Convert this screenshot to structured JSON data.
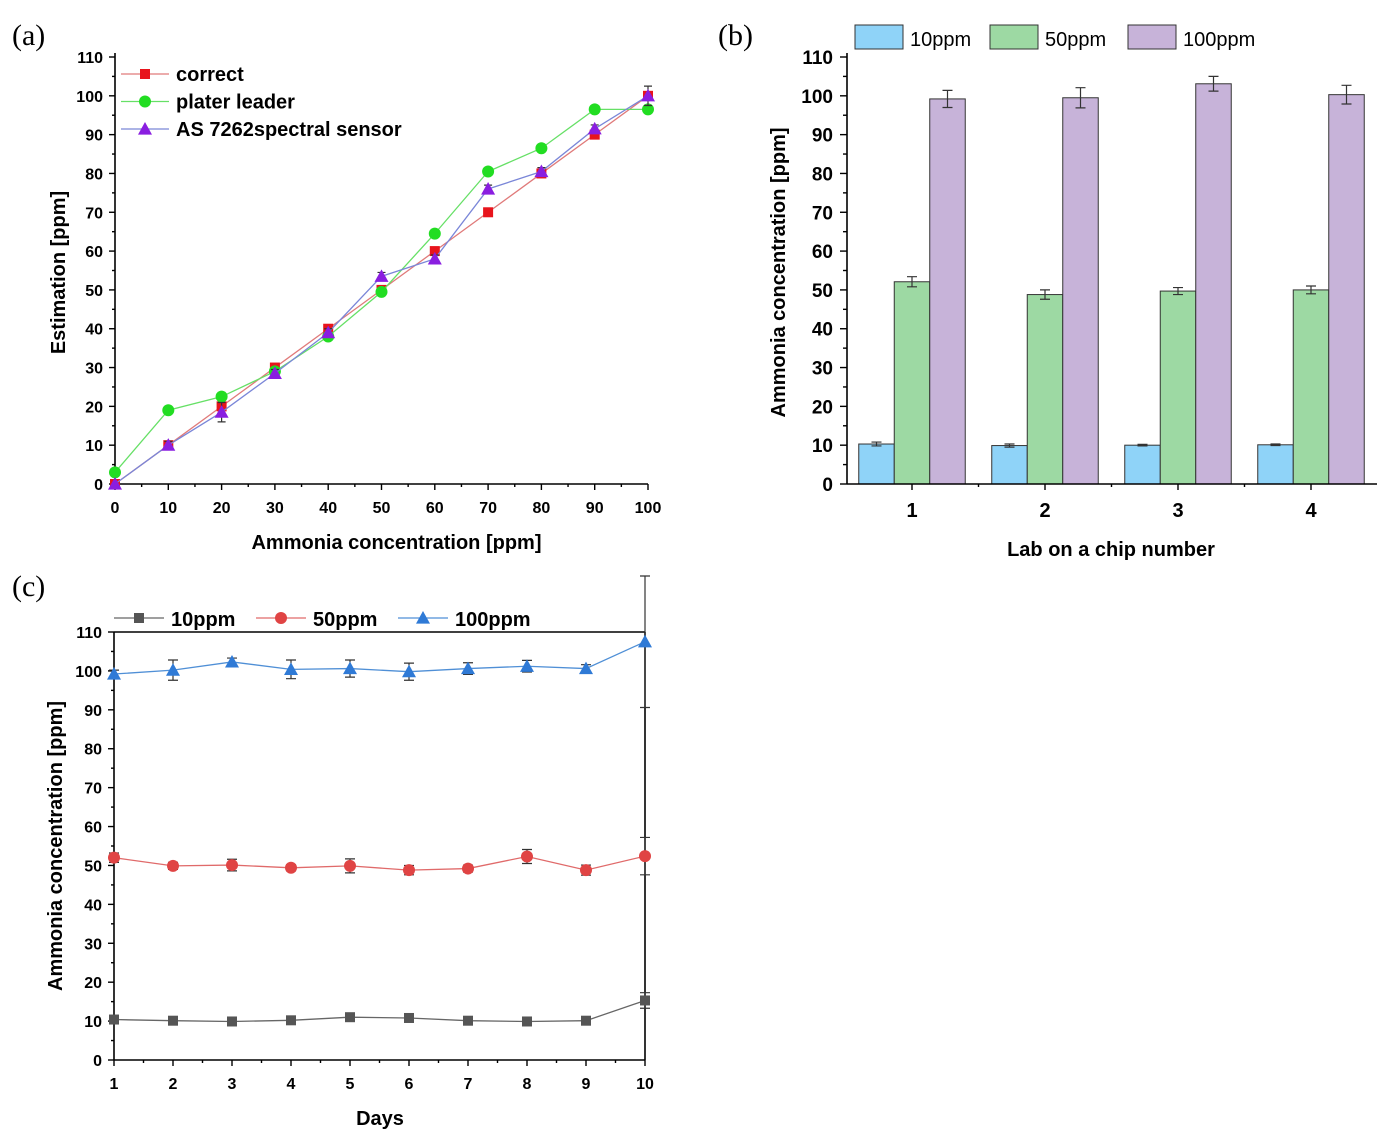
{
  "panels": {
    "a": {
      "label": "(a)"
    },
    "b": {
      "label": "(b)"
    },
    "c": {
      "label": "(c)"
    }
  },
  "chart_data": [
    {
      "id": "a",
      "type": "line",
      "title": "",
      "xlabel": "Ammonia concentration [ppm]",
      "ylabel": "Estimation [ppm]",
      "x": [
        0,
        10,
        20,
        30,
        40,
        50,
        60,
        70,
        80,
        90,
        100
      ],
      "xlim": [
        0,
        100
      ],
      "ylim": [
        0,
        110
      ],
      "xticks": [
        0,
        10,
        20,
        30,
        40,
        50,
        60,
        70,
        80,
        90,
        100
      ],
      "yticks": [
        0,
        10,
        20,
        30,
        40,
        50,
        60,
        70,
        80,
        90,
        100,
        110
      ],
      "legend_position": "top-left",
      "series": [
        {
          "name": "correct",
          "color": "#e8141c",
          "line_color": "#e07a7a",
          "marker": "square",
          "values": [
            0,
            10,
            20,
            30,
            40,
            50,
            60,
            70,
            80,
            90,
            100
          ]
        },
        {
          "name": "plater leader",
          "color": "#22dd22",
          "line_color": "#66e066",
          "marker": "circle",
          "values": [
            3,
            19,
            22.5,
            29,
            38,
            49.5,
            64.5,
            80.5,
            86.5,
            96.5,
            96.5
          ]
        },
        {
          "name": "AS 7262spectral sensor",
          "color": "#8a1ee0",
          "line_color": "#7a86d8",
          "marker": "triangle",
          "values": [
            0,
            10,
            18.5,
            28.5,
            39,
            53.5,
            58,
            76,
            80.5,
            91.5,
            100
          ],
          "errors": [
            0,
            1,
            2.5,
            1,
            1,
            1,
            1,
            1,
            1,
            1,
            2.5
          ]
        }
      ]
    },
    {
      "id": "b",
      "type": "bar",
      "title": "",
      "xlabel": "Lab on a chip number",
      "ylabel": "Ammonia concentration [ppm]",
      "categories": [
        "1",
        "2",
        "3",
        "4"
      ],
      "ylim": [
        0,
        110
      ],
      "yticks": [
        0,
        10,
        20,
        30,
        40,
        50,
        60,
        70,
        80,
        90,
        100,
        110
      ],
      "legend_position": "top",
      "series": [
        {
          "name": "10ppm",
          "color": "#8fd3f8",
          "values": [
            10.3,
            9.9,
            10.0,
            10.1
          ],
          "errors": [
            0.5,
            0.4,
            0.2,
            0.2
          ]
        },
        {
          "name": "50ppm",
          "color": "#9dd9a3",
          "values": [
            52.1,
            48.8,
            49.7,
            50.0
          ],
          "errors": [
            1.3,
            1.2,
            0.9,
            1.0
          ]
        },
        {
          "name": "100ppm",
          "color": "#c7b3d9",
          "values": [
            99.2,
            99.5,
            103.1,
            100.3
          ],
          "errors": [
            2.2,
            2.6,
            1.9,
            2.4
          ]
        }
      ]
    },
    {
      "id": "c",
      "type": "line",
      "title": "",
      "xlabel": "Days",
      "ylabel": "Ammonia concentration [ppm]",
      "x": [
        1,
        2,
        3,
        4,
        5,
        6,
        7,
        8,
        9,
        10
      ],
      "xlim": [
        1,
        10
      ],
      "ylim": [
        0,
        110
      ],
      "xticks": [
        1,
        2,
        3,
        4,
        5,
        6,
        7,
        8,
        9,
        10
      ],
      "yticks": [
        0,
        10,
        20,
        30,
        40,
        50,
        60,
        70,
        80,
        90,
        100,
        110
      ],
      "legend_position": "top",
      "series": [
        {
          "name": "10ppm",
          "color": "#555555",
          "line_color": "#666666",
          "marker": "square",
          "values": [
            10.4,
            10.1,
            9.9,
            10.2,
            11.0,
            10.8,
            10.1,
            9.9,
            10.1,
            15.3
          ],
          "errors": [
            0.3,
            0.3,
            0.3,
            0.4,
            0.5,
            0.5,
            0.3,
            0.3,
            0.3,
            2.0
          ]
        },
        {
          "name": "50ppm",
          "color": "#e04444",
          "line_color": "#e06a6a",
          "marker": "circle",
          "values": [
            52.0,
            49.9,
            50.1,
            49.4,
            49.9,
            48.8,
            49.2,
            52.3,
            48.8,
            52.4
          ],
          "errors": [
            1.2,
            0.9,
            1.5,
            0.8,
            1.8,
            1.2,
            0.9,
            1.8,
            1.3,
            4.8
          ]
        },
        {
          "name": "100ppm",
          "color": "#2f7ad6",
          "line_color": "#4f8fd6",
          "marker": "triangle",
          "values": [
            99.2,
            100.2,
            102.3,
            100.4,
            100.6,
            99.8,
            100.6,
            101.2,
            100.6,
            107.5
          ],
          "errors": [
            1.0,
            2.6,
            1.0,
            2.4,
            2.2,
            2.2,
            1.5,
            1.5,
            1.0,
            16.9
          ]
        }
      ]
    }
  ]
}
